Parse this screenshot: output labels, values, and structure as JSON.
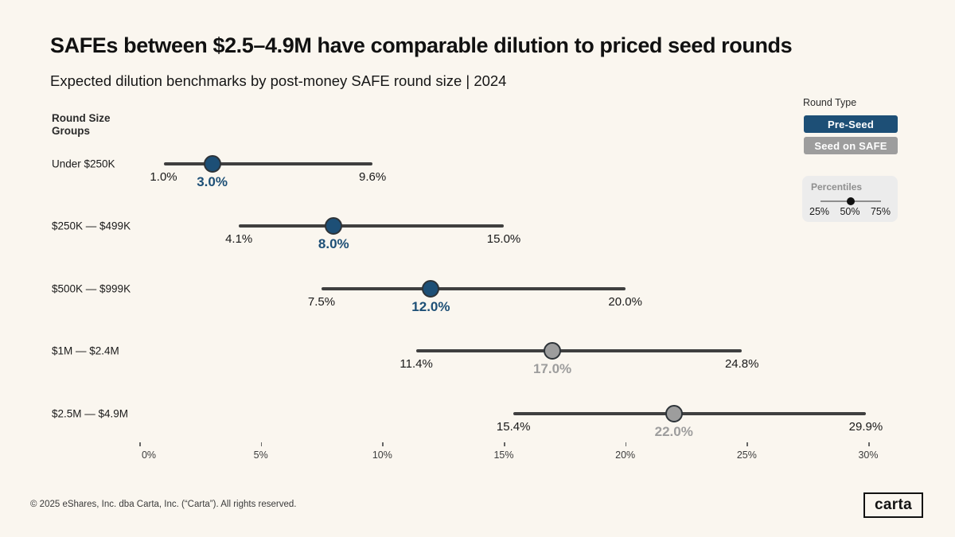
{
  "page": {
    "title": "SAFEs between $2.5–4.9M have comparable dilution to priced seed rounds",
    "subtitle": "Expected dilution benchmarks by post-money SAFE round size | 2024",
    "footer": "© 2025 eShares, Inc. dba Carta, Inc. (“Carta”). All rights reserved.",
    "logo_text": "carta",
    "background_color": "#faf6ef"
  },
  "legend": {
    "title": "Round Type",
    "buttons": [
      {
        "label": "Pre-Seed",
        "active": true
      },
      {
        "label": "Seed on SAFE",
        "active": false
      }
    ],
    "percentiles": {
      "title": "Percentiles",
      "labels": [
        "25%",
        "50%",
        "75%"
      ],
      "selected": "50%"
    }
  },
  "colors": {
    "pre_seed": "#1d4f76",
    "seed_on_safe": "#9d9d9d",
    "range_line": "#3f3f3f",
    "background": "#faf6ef"
  },
  "chart_data": {
    "type": "dumbbell",
    "title": "SAFEs between $2.5–4.9M have comparable dilution to priced seed rounds",
    "subtitle": "Expected dilution benchmarks by post-money SAFE round size | 2024",
    "group_axis_label": "Round Size Groups",
    "categories": [
      "Under $250K",
      "$250K — $499K",
      "$500K — $999K",
      "$1M — $2.4M",
      "$2.5M — $4.9M"
    ],
    "series": [
      {
        "name": "Pre-Seed",
        "color": "#1d4f76"
      },
      {
        "name": "Seed on SAFE",
        "color": "#9d9d9d"
      }
    ],
    "rows": [
      {
        "category": "Under $250K",
        "series": "Pre-Seed",
        "p25": 1.0,
        "median": 3.0,
        "p75": 9.6
      },
      {
        "category": "$250K — $499K",
        "series": "Pre-Seed",
        "p25": 4.1,
        "median": 8.0,
        "p75": 15.0
      },
      {
        "category": "$500K — $999K",
        "series": "Pre-Seed",
        "p25": 7.5,
        "median": 12.0,
        "p75": 20.0
      },
      {
        "category": "$1M — $2.4M",
        "series": "Seed on SAFE",
        "p25": 11.4,
        "median": 17.0,
        "p75": 24.8
      },
      {
        "category": "$2.5M — $4.9M",
        "series": "Seed on SAFE",
        "p25": 15.4,
        "median": 22.0,
        "p75": 29.9
      }
    ],
    "x_ticks": [
      0,
      5,
      10,
      15,
      20,
      25,
      30
    ],
    "x_tick_labels": [
      "0%",
      "5%",
      "10%",
      "15%",
      "20%",
      "25%",
      "30%"
    ],
    "xlim": [
      0,
      30
    ],
    "value_unit": "%",
    "grid": false,
    "legend_position": "top-right"
  }
}
